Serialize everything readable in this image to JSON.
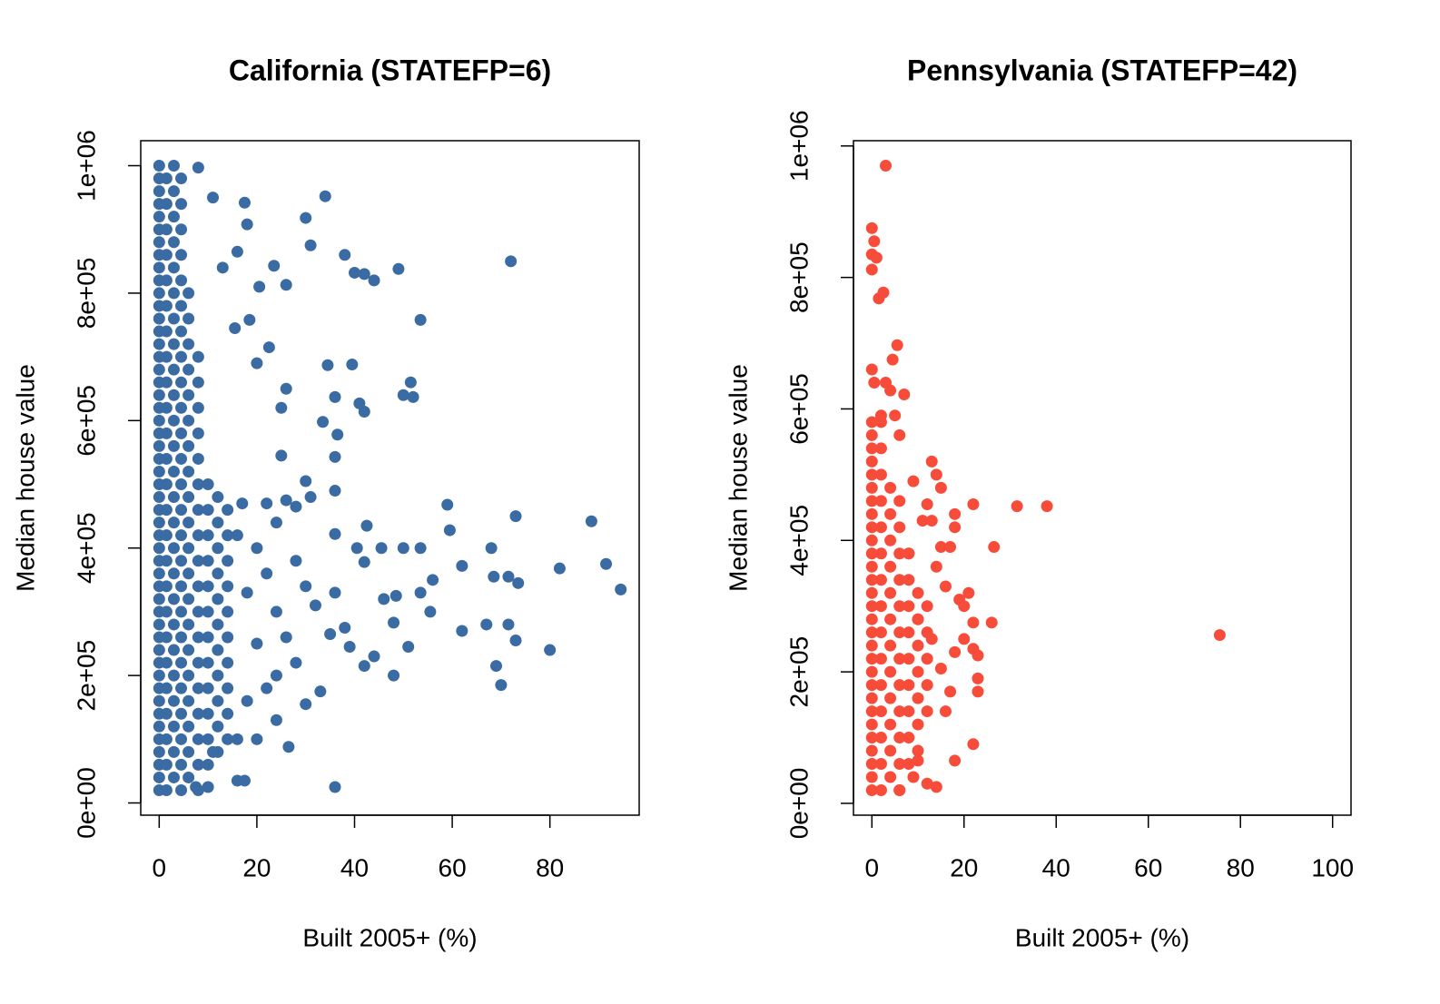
{
  "chart_data": [
    {
      "type": "scatter",
      "title": "California (STATEFP=6)",
      "x_label": "Built 2005+ (%)",
      "y_label": "Median house value",
      "color": "#3a6ba3",
      "xlim": [
        -3.78,
        98.28
      ],
      "ylim": [
        -19200,
        1039200
      ],
      "xticks": [
        0,
        20,
        40,
        60,
        80
      ],
      "yticks": [
        {
          "value": 0,
          "label": "0e+00"
        },
        {
          "value": 200000,
          "label": "2e+05"
        },
        {
          "value": 400000,
          "label": "4e+05"
        },
        {
          "value": 600000,
          "label": "6e+05"
        },
        {
          "value": 800000,
          "label": "8e+05"
        },
        {
          "value": 1000000,
          "label": "1e+06"
        }
      ],
      "x": [
        0,
        0,
        0,
        0,
        0,
        0,
        0,
        0,
        0,
        0,
        0,
        0,
        0,
        0,
        0,
        0,
        0,
        0,
        0,
        0,
        0,
        0,
        0,
        0,
        0,
        0,
        0,
        0,
        0,
        0,
        0,
        0,
        0,
        0,
        0,
        0,
        0,
        0,
        0,
        0,
        0,
        0,
        0,
        0,
        0,
        0,
        0,
        0,
        0,
        0,
        1.5,
        1.5,
        1.5,
        1.5,
        1.5,
        1.5,
        1.5,
        1.5,
        1.5,
        1.5,
        1.5,
        1.5,
        1.5,
        1.5,
        1.5,
        1.5,
        1.5,
        1.5,
        1.5,
        1.5,
        1.5,
        1.5,
        1.5,
        1.5,
        1.5,
        3,
        3,
        3,
        3,
        3,
        3,
        3,
        3,
        3,
        3,
        3,
        3,
        3,
        3,
        3,
        3,
        3,
        3,
        3,
        3,
        3,
        3,
        3,
        3,
        3,
        4.5,
        4.5,
        4.5,
        4.5,
        4.5,
        4.5,
        4.5,
        4.5,
        4.5,
        4.5,
        4.5,
        4.5,
        4.5,
        4.5,
        4.5,
        4.5,
        4.5,
        4.5,
        4.5,
        4.5,
        4.5,
        4.5,
        4.5,
        4.5,
        4.5,
        6,
        6,
        6,
        6,
        6,
        6,
        6,
        6,
        6,
        6,
        6,
        6,
        6,
        6,
        6,
        6,
        6,
        6,
        6,
        6,
        8,
        8,
        8,
        8,
        8,
        8,
        8,
        8,
        8,
        8,
        8,
        8,
        8,
        8,
        8,
        8,
        8,
        8,
        10,
        10,
        10,
        10,
        10,
        10,
        10,
        10,
        10,
        10,
        10,
        10,
        12,
        12,
        12,
        12,
        12,
        12,
        12,
        12,
        12,
        12,
        12,
        14,
        14,
        14,
        14,
        14,
        14,
        14,
        14,
        14,
        14,
        72,
        94.5,
        91.5,
        88.5,
        82,
        80,
        73,
        73.5,
        73,
        71.5,
        71.5,
        70,
        69,
        68.5,
        68,
        67,
        62,
        62,
        59,
        59.5,
        56,
        55.5,
        53.5,
        52,
        51.5,
        50,
        49,
        53.5,
        53.5,
        51,
        50,
        48,
        48.5,
        48,
        46,
        44,
        42,
        40,
        38,
        34,
        31,
        30,
        39.5,
        41,
        42,
        34.5,
        36,
        33.5,
        36.5,
        36,
        36,
        42.5,
        45.5,
        40.5,
        36,
        42,
        44,
        42,
        39,
        38,
        36,
        35,
        33,
        30,
        36,
        26.5,
        24,
        17.5,
        18,
        16,
        23.5,
        26,
        20.5,
        22.5,
        25,
        26,
        30,
        31,
        25,
        20,
        18.5,
        15.5,
        13,
        11,
        8,
        17,
        22,
        26,
        28,
        24,
        20,
        28,
        30,
        24,
        20,
        28,
        24,
        18,
        16,
        17.5,
        16,
        11,
        10,
        7.5,
        22,
        26,
        32,
        18,
        16,
        22,
        20
      ],
      "values": [
        20000,
        60000,
        100000,
        140000,
        180000,
        220000,
        260000,
        300000,
        340000,
        380000,
        420000,
        460000,
        500000,
        540000,
        580000,
        620000,
        660000,
        700000,
        740000,
        780000,
        820000,
        860000,
        900000,
        940000,
        980000,
        40000,
        80000,
        120000,
        160000,
        200000,
        240000,
        280000,
        320000,
        360000,
        400000,
        440000,
        480000,
        520000,
        560000,
        600000,
        640000,
        680000,
        720000,
        760000,
        800000,
        840000,
        880000,
        920000,
        960000,
        1000000,
        20000,
        60000,
        100000,
        140000,
        180000,
        220000,
        260000,
        300000,
        340000,
        380000,
        420000,
        460000,
        500000,
        540000,
        580000,
        620000,
        660000,
        700000,
        740000,
        780000,
        820000,
        860000,
        900000,
        940000,
        980000,
        40000,
        80000,
        120000,
        160000,
        200000,
        240000,
        280000,
        320000,
        360000,
        400000,
        440000,
        480000,
        520000,
        560000,
        600000,
        640000,
        680000,
        720000,
        760000,
        800000,
        840000,
        880000,
        920000,
        960000,
        1000000,
        20000,
        60000,
        100000,
        140000,
        180000,
        220000,
        260000,
        300000,
        340000,
        380000,
        420000,
        460000,
        500000,
        540000,
        580000,
        620000,
        660000,
        700000,
        740000,
        780000,
        820000,
        860000,
        900000,
        940000,
        980000,
        40000,
        80000,
        120000,
        160000,
        200000,
        240000,
        280000,
        320000,
        360000,
        400000,
        440000,
        480000,
        520000,
        560000,
        600000,
        640000,
        680000,
        720000,
        760000,
        800000,
        20000,
        60000,
        100000,
        140000,
        180000,
        220000,
        260000,
        300000,
        340000,
        380000,
        420000,
        460000,
        500000,
        540000,
        580000,
        620000,
        660000,
        700000,
        60000,
        100000,
        140000,
        180000,
        220000,
        260000,
        300000,
        340000,
        380000,
        420000,
        460000,
        500000,
        80000,
        120000,
        160000,
        200000,
        240000,
        280000,
        320000,
        360000,
        400000,
        440000,
        480000,
        100000,
        140000,
        180000,
        220000,
        260000,
        300000,
        340000,
        380000,
        420000,
        460000,
        850000,
        335000,
        375000,
        442000,
        368000,
        240000,
        450000,
        345000,
        255000,
        355000,
        280000,
        185000,
        215000,
        355000,
        400000,
        280000,
        270000,
        372000,
        468000,
        428000,
        350000,
        300000,
        758000,
        637000,
        660000,
        640000,
        838000,
        400000,
        330000,
        245000,
        400000,
        283000,
        325000,
        200000,
        320000,
        820000,
        830000,
        832000,
        860000,
        952000,
        875000,
        918000,
        688000,
        627000,
        614000,
        687000,
        637000,
        598000,
        578000,
        543000,
        490000,
        435000,
        400000,
        400000,
        422000,
        378000,
        230000,
        215000,
        245000,
        275000,
        330000,
        265000,
        175000,
        155000,
        25000,
        88000,
        130000,
        942000,
        908000,
        865000,
        843000,
        813000,
        810000,
        715000,
        620000,
        650000,
        505000,
        480000,
        545000,
        690000,
        758000,
        745000,
        840000,
        950000,
        997000,
        470000,
        470000,
        475000,
        465000,
        440000,
        400000,
        380000,
        340000,
        300000,
        250000,
        220000,
        200000,
        160000,
        100000,
        35000,
        35000,
        80000,
        25000,
        25000,
        360000,
        260000,
        310000,
        330000,
        420000,
        180000,
        100000
      ]
    },
    {
      "type": "scatter",
      "title": "Pennsylvania (STATEFP=42)",
      "x_label": "Built 2005+ (%)",
      "y_label": "Median house value",
      "color": "#f84c3b",
      "xlim": [
        -4,
        104
      ],
      "ylim": [
        -18000,
        1008000
      ],
      "xticks": [
        0,
        20,
        40,
        60,
        80,
        100
      ],
      "yticks": [
        {
          "value": 0,
          "label": "0e+00"
        },
        {
          "value": 200000,
          "label": "2e+05"
        },
        {
          "value": 400000,
          "label": "4e+05"
        },
        {
          "value": 600000,
          "label": "6e+05"
        },
        {
          "value": 800000,
          "label": "8e+05"
        },
        {
          "value": 1000000,
          "label": "1e+06"
        }
      ],
      "x": [
        0,
        0,
        0,
        0,
        0,
        0,
        0,
        0,
        0,
        0,
        0,
        0,
        0,
        0,
        0,
        0,
        0,
        0,
        0,
        0,
        0,
        0,
        0,
        0,
        0,
        0,
        0,
        0,
        0,
        2,
        2,
        2,
        2,
        2,
        2,
        2,
        2,
        2,
        2,
        2,
        2,
        2,
        2,
        2,
        4,
        4,
        4,
        4,
        4,
        4,
        4,
        4,
        4,
        4,
        4,
        4,
        6,
        6,
        6,
        6,
        6,
        6,
        6,
        6,
        6,
        6,
        6,
        6,
        8,
        8,
        8,
        8,
        8,
        8,
        8,
        8,
        8,
        10,
        10,
        10,
        10,
        10,
        10,
        10,
        12,
        12,
        12,
        12,
        12,
        3,
        0,
        0.5,
        0,
        1,
        0,
        2.5,
        1.5,
        5.5,
        4.5,
        0,
        0.5,
        3,
        7,
        4,
        2,
        5,
        6,
        75.5,
        38,
        31.5,
        22,
        26.5,
        26,
        22,
        21,
        20,
        18,
        18,
        17,
        15,
        14,
        13,
        15,
        12,
        13,
        14,
        16,
        19,
        18,
        17,
        22,
        23,
        23,
        23,
        22,
        18,
        14,
        12,
        6,
        9,
        10,
        16,
        15,
        13,
        9,
        11,
        8,
        10,
        20
      ],
      "values": [
        20000,
        60000,
        100000,
        140000,
        180000,
        220000,
        260000,
        300000,
        340000,
        380000,
        420000,
        460000,
        500000,
        540000,
        580000,
        40000,
        80000,
        120000,
        160000,
        200000,
        240000,
        280000,
        320000,
        360000,
        400000,
        440000,
        480000,
        520000,
        560000,
        20000,
        60000,
        100000,
        140000,
        180000,
        220000,
        260000,
        300000,
        340000,
        380000,
        420000,
        460000,
        500000,
        540000,
        580000,
        40000,
        80000,
        120000,
        160000,
        200000,
        240000,
        280000,
        320000,
        360000,
        400000,
        440000,
        480000,
        20000,
        60000,
        100000,
        140000,
        180000,
        220000,
        260000,
        300000,
        340000,
        380000,
        420000,
        460000,
        60000,
        100000,
        140000,
        180000,
        220000,
        260000,
        300000,
        340000,
        380000,
        80000,
        120000,
        160000,
        200000,
        240000,
        280000,
        320000,
        140000,
        180000,
        220000,
        260000,
        300000,
        970000,
        875000,
        855000,
        835000,
        830000,
        812000,
        777000,
        768000,
        697000,
        675000,
        660000,
        640000,
        640000,
        622000,
        628000,
        590000,
        590000,
        560000,
        256000,
        452000,
        452000,
        455000,
        390000,
        275000,
        275000,
        320000,
        300000,
        440000,
        420000,
        390000,
        390000,
        500000,
        520000,
        480000,
        455000,
        430000,
        360000,
        330000,
        310000,
        230000,
        170000,
        90000,
        190000,
        170000,
        225000,
        235000,
        65000,
        25000,
        30000,
        20000,
        40000,
        65000,
        140000,
        205000,
        250000,
        490000,
        430000,
        380000,
        280000,
        250000
      ]
    }
  ]
}
